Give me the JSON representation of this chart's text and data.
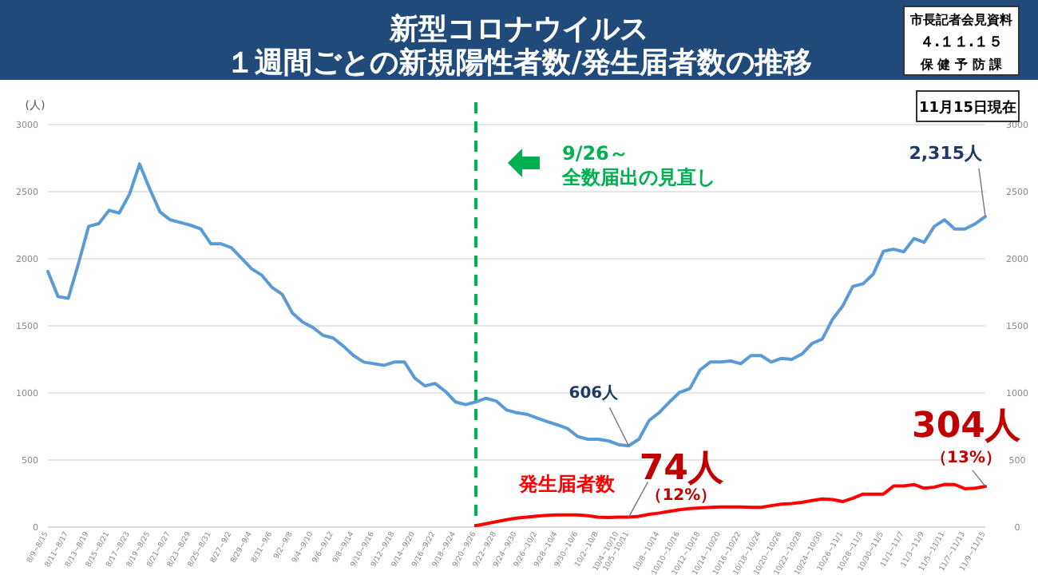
{
  "chart_data": {
    "type": "line",
    "title": "新型コロナウイルス",
    "subtitle": "１週間ごとの新規陽性者数/発生届者数の推移",
    "ylabel": "(人)",
    "categories": [
      "8/9~8/15",
      null,
      "8/11~8/17",
      null,
      "8/13~8/19",
      null,
      "8/15~8/21",
      null,
      "8/17~8/23",
      null,
      "8/19~8/25",
      null,
      "8/21~8/27",
      null,
      "8/23~8/29",
      null,
      "8/25~8/31",
      null,
      "8/27~9/2",
      null,
      "8/29~9/4",
      null,
      "8/31~9/6",
      null,
      "9/2~9/8",
      null,
      "9/4~9/10",
      null,
      "9/6~9/12",
      null,
      "9/8~9/14",
      null,
      "9/10~9/16",
      null,
      "9/12~9/18",
      null,
      "9/14~9/20",
      null,
      "9/16~9/22",
      null,
      "9/18~9/24",
      null,
      "9/20~9/26",
      null,
      "9/22~9/28",
      null,
      "9/24~9/30",
      null,
      "9/26~10/2",
      null,
      "9/28~10/4",
      null,
      "9/30~10/6",
      null,
      "10/2~10/8",
      null,
      "10/4~10/10",
      "10/5~10/11",
      null,
      null,
      "10/8~10/14",
      null,
      "10/10~10/16",
      null,
      "10/12~10/18",
      null,
      "10/14~10/20",
      null,
      "10/16~10/22",
      null,
      "10/18~10/24",
      null,
      "10/20~10/26",
      null,
      "10/22~10/28",
      null,
      "10/24~10/30",
      null,
      "10/26~11/1",
      null,
      "10/28~11/3",
      null,
      "10/30~11/5",
      null,
      "11/1~11/7",
      null,
      "11/3~11/9",
      null,
      "11/5~11/11",
      null,
      "11/7~11/13",
      null,
      "11/9~11/15"
    ],
    "series": [
      {
        "color": "#5b9bd5",
        "values": [
          1905,
          1718,
          1706,
          1964,
          2242,
          2262,
          2361,
          2341,
          2480,
          2706,
          2520,
          2349,
          2290,
          2270,
          2250,
          2222,
          2111,
          2111,
          2083,
          2004,
          1925,
          1877,
          1786,
          1734,
          1595,
          1528,
          1488,
          1429,
          1409,
          1349,
          1278,
          1230,
          1218,
          1206,
          1230,
          1230,
          1111,
          1052,
          1071,
          1012,
          933,
          913,
          933,
          960,
          940,
          873,
          853,
          841,
          813,
          786,
          762,
          734,
          675,
          655,
          655,
          643,
          615,
          606,
          655,
          794,
          853,
          933,
          1004,
          1032,
          1171,
          1230,
          1230,
          1238,
          1218,
          1278,
          1278,
          1230,
          1258,
          1250,
          1290,
          1369,
          1401,
          1548,
          1647,
          1794,
          1813,
          1885,
          2056,
          2071,
          2052,
          2151,
          2123,
          2242,
          2290,
          2222,
          2222,
          2260,
          2315
        ]
      },
      {
        "name": "発生届者数",
        "color": "#ff0000",
        "values": [
          null,
          null,
          null,
          null,
          null,
          null,
          null,
          null,
          null,
          null,
          null,
          null,
          null,
          null,
          null,
          null,
          null,
          null,
          null,
          null,
          null,
          null,
          null,
          null,
          null,
          null,
          null,
          null,
          null,
          null,
          null,
          null,
          null,
          null,
          null,
          null,
          null,
          null,
          null,
          null,
          null,
          null,
          10,
          25,
          40,
          55,
          67,
          75,
          82,
          88,
          91,
          91,
          91,
          85,
          75,
          72,
          74,
          74,
          80,
          95,
          105,
          118,
          130,
          139,
          143,
          148,
          151,
          151,
          150,
          148,
          147,
          160,
          171,
          175,
          185,
          198,
          210,
          205,
          190,
          215,
          246,
          246,
          246,
          306,
          306,
          317,
          290,
          298,
          318,
          317,
          286,
          290,
          304
        ]
      }
    ],
    "ylim": [
      0,
      3000
    ],
    "yticks": [
      0,
      500,
      1000,
      1500,
      2000,
      2500,
      3000
    ],
    "y2lim": [
      0,
      3000
    ],
    "y2ticks": [
      0,
      500,
      1000,
      1500,
      2000,
      2500,
      3000
    ],
    "grid": "y",
    "legend": false,
    "ref_lines": [
      {
        "axis": "x",
        "value": "9/20~9/26",
        "label": "9/26～",
        "color": "#00b050",
        "line_style": "dashed"
      }
    ],
    "annotations": [
      "市長記者会見資料",
      "４.１１.１５",
      "保 健 予 防 課",
      "11月15日現在",
      "全数届出の見直し",
      {
        "text": "606人",
        "x": "10/5~10/11",
        "y": 606
      },
      {
        "text": "2,315人",
        "x": "11/9~11/15",
        "y": 2315
      },
      {
        "text": "74人",
        "x": "10/5~10/11",
        "y": 74
      },
      {
        "text": "（12%）",
        "x": "10/5~10/11",
        "y": 74
      },
      {
        "text": "304人",
        "x": "11/9~11/15",
        "y": 304
      },
      {
        "text": "（13%）",
        "x": "11/9~11/15",
        "y": 304
      }
    ]
  }
}
